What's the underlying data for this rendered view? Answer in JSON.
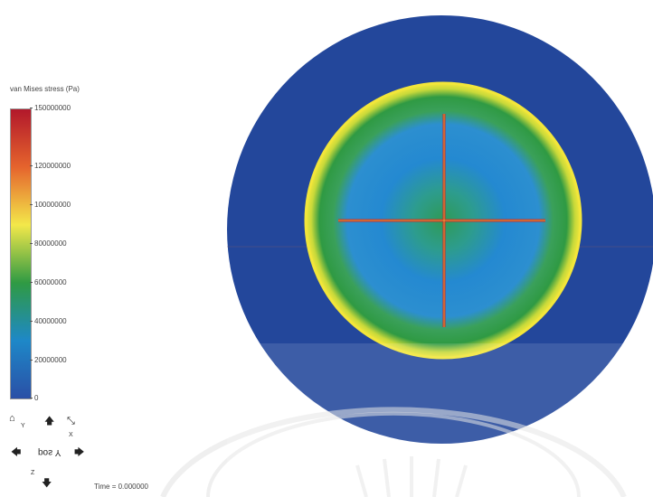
{
  "legend": {
    "title": "van Mises stress (Pa)",
    "ticks": [
      "150000000",
      "120000000",
      "100000000",
      "80000000",
      "60000000",
      "40000000",
      "20000000",
      "0"
    ],
    "colors": [
      "#b2182b",
      "#e5642d",
      "#f3e84a",
      "#2f9a43",
      "#1e88c8",
      "#2a4fa6"
    ]
  },
  "viewer": {
    "background_disc_color": "#23479b",
    "specimen_edge_color": "#f2e63a",
    "specimen_ring_color": "#2f9a43",
    "specimen_core_color": "#2489d1",
    "crack_color": "#c62b2b"
  },
  "triad": {
    "label": "pos Y",
    "axes": [
      "Y",
      "X",
      "Z"
    ]
  },
  "status": {
    "time": "Time = 0.000000"
  }
}
